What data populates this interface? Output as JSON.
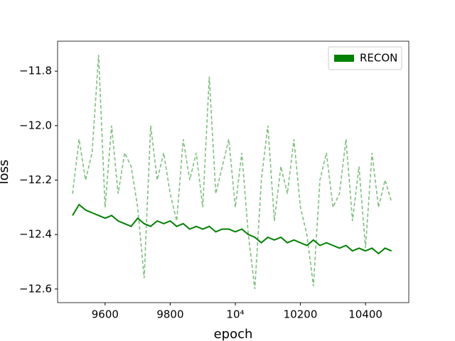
{
  "chart_data": {
    "type": "line",
    "xlabel": "epoch",
    "ylabel": "loss",
    "x": [
      9500,
      9520,
      9540,
      9560,
      9580,
      9600,
      9620,
      9640,
      9660,
      9680,
      9700,
      9720,
      9740,
      9760,
      9780,
      9800,
      9820,
      9840,
      9860,
      9880,
      9900,
      9920,
      9940,
      9960,
      9980,
      10000,
      10020,
      10040,
      10060,
      10080,
      10100,
      10120,
      10140,
      10160,
      10180,
      10200,
      10220,
      10240,
      10260,
      10280,
      10300,
      10320,
      10340,
      10360,
      10380,
      10400,
      10420,
      10440,
      10460,
      10480
    ],
    "series": [
      {
        "color": "#7fbf7f",
        "linestyle": "dashed",
        "values": [
          -12.25,
          -12.05,
          -12.2,
          -12.1,
          -11.74,
          -12.3,
          -12.0,
          -12.25,
          -12.1,
          -12.15,
          -12.3,
          -12.56,
          -12.0,
          -12.2,
          -12.1,
          -12.25,
          -12.35,
          -12.05,
          -12.2,
          -12.1,
          -12.3,
          -11.82,
          -12.25,
          -12.15,
          -12.05,
          -12.3,
          -12.1,
          -12.4,
          -12.6,
          -12.2,
          -12.0,
          -12.35,
          -12.15,
          -12.25,
          -12.05,
          -12.3,
          -12.4,
          -12.59,
          -12.2,
          -12.1,
          -12.3,
          -12.25,
          -12.05,
          -12.35,
          -12.15,
          -12.45,
          -12.1,
          -12.3,
          -12.2,
          -12.28
        ]
      },
      {
        "name": "RECON",
        "color": "#008000",
        "linestyle": "solid",
        "values": [
          -12.33,
          -12.29,
          -12.31,
          -12.32,
          -12.33,
          -12.34,
          -12.33,
          -12.35,
          -12.36,
          -12.37,
          -12.34,
          -12.36,
          -12.37,
          -12.35,
          -12.36,
          -12.35,
          -12.37,
          -12.36,
          -12.38,
          -12.37,
          -12.38,
          -12.37,
          -12.39,
          -12.38,
          -12.38,
          -12.39,
          -12.38,
          -12.4,
          -12.41,
          -12.43,
          -12.41,
          -12.42,
          -12.41,
          -12.43,
          -12.42,
          -12.43,
          -12.44,
          -12.42,
          -12.44,
          -12.43,
          -12.44,
          -12.45,
          -12.44,
          -12.46,
          -12.45,
          -12.46,
          -12.45,
          -12.47,
          -12.45,
          -12.46
        ]
      }
    ],
    "xlim": [
      9454,
      10533
    ],
    "xticks": [
      9600,
      9800,
      {
        "value": 10000,
        "label": "10⁴"
      },
      10200,
      10400
    ],
    "ylim": [
      -12.65,
      -11.69
    ],
    "yticks": [
      {
        "value": -11.8,
        "label": "−11.8"
      },
      {
        "value": -12.0,
        "label": "−12.0"
      },
      {
        "value": -12.2,
        "label": "−12.2"
      },
      {
        "value": -12.4,
        "label": "−12.4"
      },
      {
        "value": -12.6,
        "label": "−12.6"
      }
    ],
    "legend": "upper right"
  }
}
